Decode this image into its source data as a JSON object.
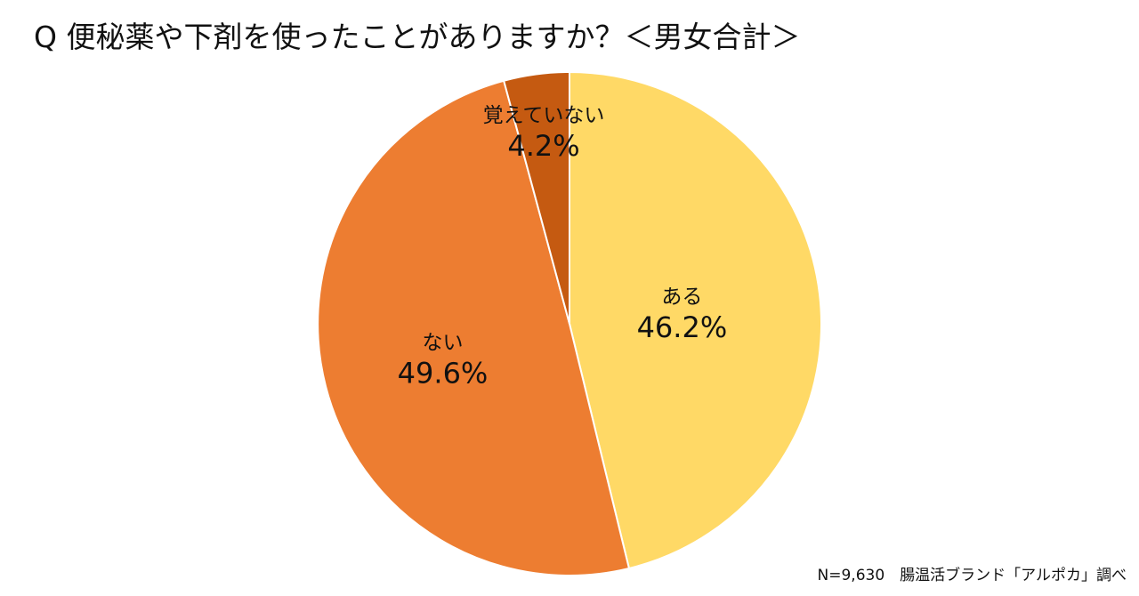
{
  "title": "Q 便秘薬や下剤を使ったことがありますか？＜男女合計＞",
  "footnote": "N=9,630　腸温活ブランド「アルポカ」調べ",
  "chart_data": {
    "type": "pie",
    "start_angle_deg": 0,
    "direction": "clockwise",
    "slices": [
      {
        "label": "ある",
        "value": 46.2,
        "value_label": "46.2%",
        "color": "#FFD966"
      },
      {
        "label": "ない",
        "value": 49.6,
        "value_label": "49.6%",
        "color": "#ED7D31"
      },
      {
        "label": "覚えていない",
        "value": 4.2,
        "value_label": "4.2%",
        "color": "#C55A11"
      }
    ]
  }
}
